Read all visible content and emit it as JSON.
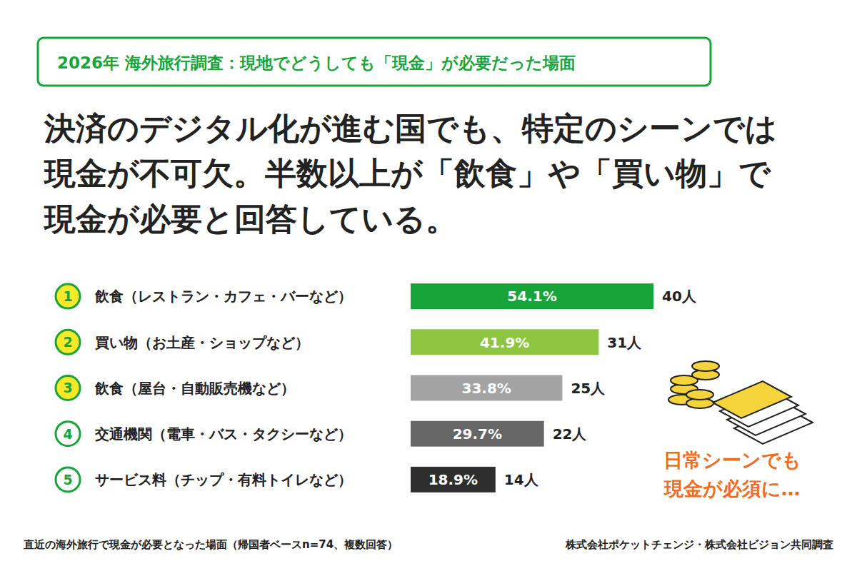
{
  "chart_data": {
    "type": "bar",
    "orientation": "horizontal",
    "title": "2026年 海外旅行調査：現地でどうしても「現金」が必要だった場面",
    "subtitle": [
      "決済のデジタル化が進む国でも、特定のシーンでは",
      "現金が不可欠。半数以上が「飲食」や「買い物」で",
      "現金が必要と回答している。"
    ],
    "ranks": [
      1,
      2,
      3,
      4,
      5
    ],
    "categories": [
      "飲食（レストラン・カフェ・バーなど）",
      "買い物（お土産・ショップなど）",
      "飲食（屋台・自動販売機など）",
      "交通機関（電車・バス・タクシーなど）",
      "サービス料（チップ・有料トイレなど）"
    ],
    "values": [
      54.1,
      41.9,
      33.8,
      29.7,
      18.9
    ],
    "value_labels": [
      "54.1%",
      "41.9%",
      "33.8%",
      "29.7%",
      "18.9%"
    ],
    "count_labels": [
      "40人",
      "31人",
      "25人",
      "22人",
      "14人"
    ],
    "colors": [
      "#17a53a",
      "#8dc540",
      "#a3a3a3",
      "#666666",
      "#2e2e2e"
    ],
    "xlim": [
      0,
      54.1
    ],
    "tick_labels": false,
    "grid": false,
    "data_labels": true,
    "annotations": [
      "日常シーンでも",
      "現金が必須に…"
    ],
    "footnote": "直近の海外旅行で現金が必要となった場面（帰国者ベースn=74、複数回答）",
    "source": "株式会社ポケットチェンジ・株式会社ビジョン共同調査"
  }
}
